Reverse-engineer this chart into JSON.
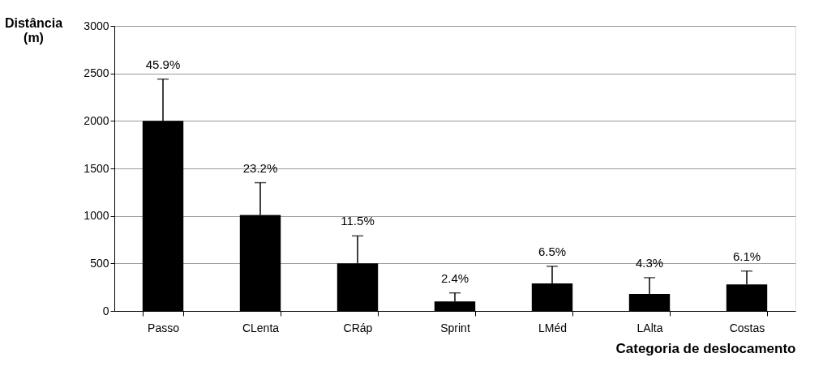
{
  "chart_data": {
    "type": "bar",
    "categories": [
      "Passo",
      "CLenta",
      "CRáp",
      "Sprint",
      "LMéd",
      "LAlta",
      "Costas"
    ],
    "values": [
      2000,
      1010,
      500,
      100,
      290,
      180,
      280
    ],
    "errors": [
      [
        2000,
        2440
      ],
      [
        1010,
        1350
      ],
      [
        500,
        790
      ],
      [
        100,
        190
      ],
      [
        290,
        470
      ],
      [
        180,
        350
      ],
      [
        280,
        420
      ]
    ],
    "annotations": [
      {
        "text": "45.9%",
        "x": "Passo",
        "y": 2440
      },
      {
        "text": "23.2%",
        "x": "CLenta",
        "y": 1350
      },
      {
        "text": "11.5%",
        "x": "CRáp",
        "y": 790
      },
      {
        "text": "2.4%",
        "x": "Sprint",
        "y": 190
      },
      {
        "text": "6.5%",
        "x": "LMéd",
        "y": 470
      },
      {
        "text": "4.3%",
        "x": "LAlta",
        "y": 350
      },
      {
        "text": "6.1%",
        "x": "Costas",
        "y": 420
      }
    ],
    "color": "#000000",
    "ylabel": "Distância (m)",
    "xlabel": "Categoria de deslocamento",
    "ylim": [
      0,
      3000
    ],
    "yticks": [
      0,
      500,
      1000,
      1500,
      2000,
      2500,
      3000
    ],
    "grid": "y"
  }
}
